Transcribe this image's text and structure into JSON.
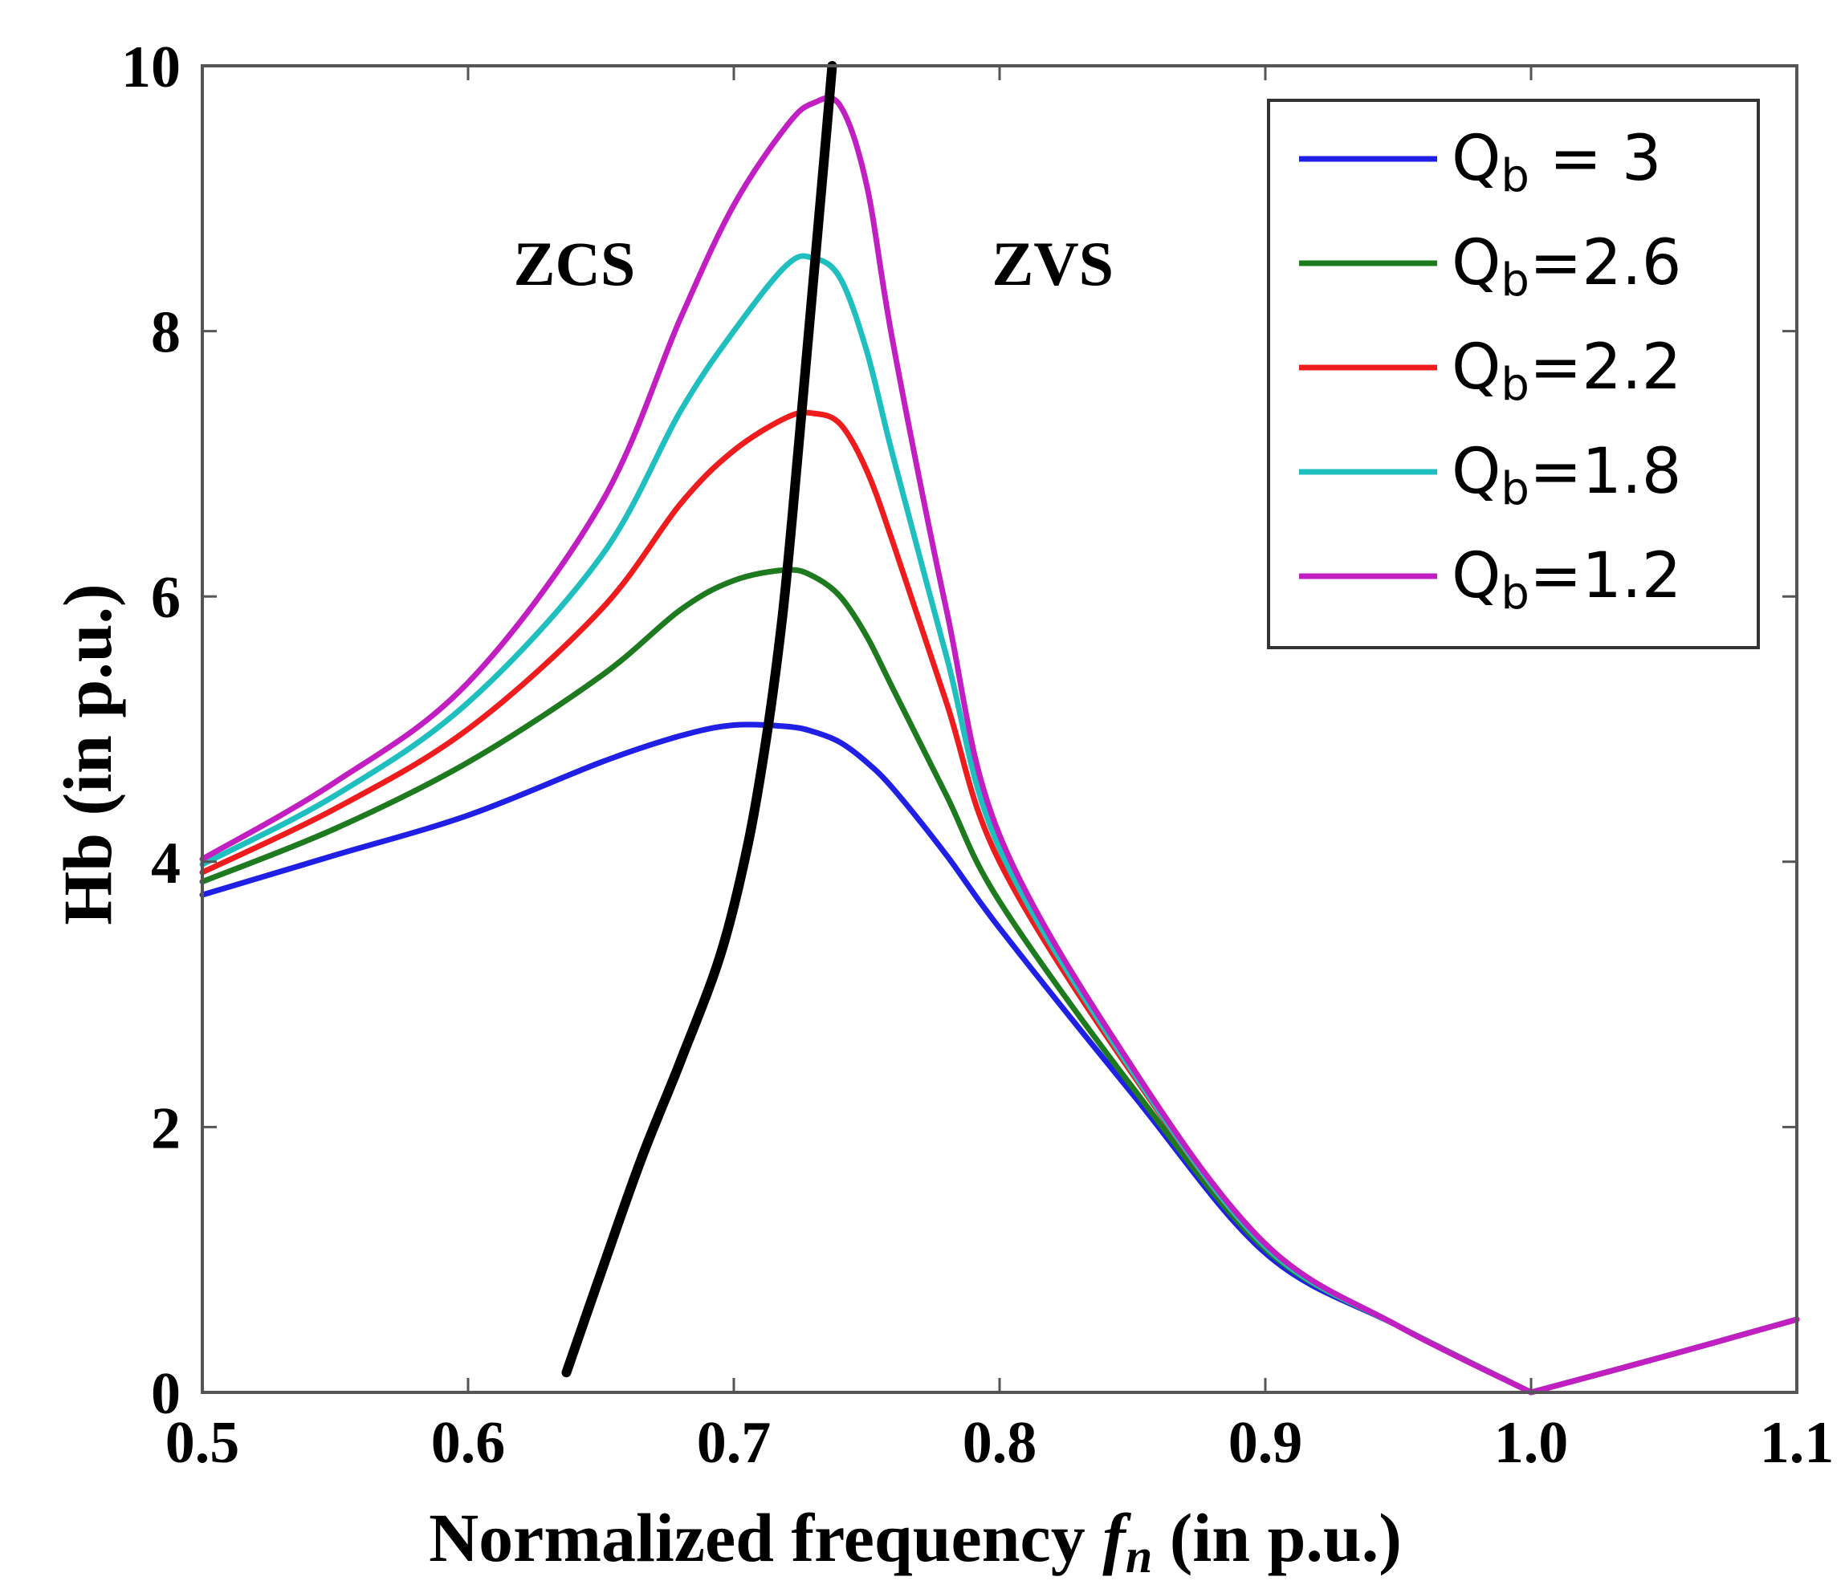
{
  "chart_data": {
    "type": "line",
    "xlabel": "Normalized frequency",
    "xlabel_symbol": "f",
    "xlabel_symbol_sub": "n",
    "xlabel_suffix": "(in p.u.)",
    "ylabel": "Hb (in p.u.)",
    "xlim": [
      0.5,
      1.1
    ],
    "ylim": [
      0,
      10
    ],
    "xticks": [
      0.5,
      0.6,
      0.7,
      0.8,
      0.9,
      1.0,
      1.1
    ],
    "xtick_labels": [
      "0.5",
      "0.6",
      "0.7",
      "0.8",
      "0.9",
      "1.0",
      "1.1"
    ],
    "yticks": [
      0,
      2,
      4,
      6,
      8,
      10
    ],
    "ytick_labels": [
      "0",
      "2",
      "4",
      "6",
      "8",
      "10"
    ],
    "grid": false,
    "legend_position": "top-right",
    "annotations": [
      {
        "text": "ZCS",
        "x": 0.64,
        "y": 8.5
      },
      {
        "text": "ZVS",
        "x": 0.82,
        "y": 8.5
      }
    ],
    "x": [
      0.5,
      0.55,
      0.6,
      0.65,
      0.68,
      0.7,
      0.72,
      0.73,
      0.74,
      0.75,
      0.76,
      0.78,
      0.8,
      0.85,
      0.9,
      0.95,
      1.0,
      1.05,
      1.1
    ],
    "series": [
      {
        "name_prefix": "Q",
        "name_sub": "b",
        "name_suffix": " = 3",
        "color": "#1f1fe6",
        "values": [
          3.75,
          4.05,
          4.35,
          4.75,
          4.95,
          5.03,
          5.02,
          4.98,
          4.9,
          4.75,
          4.55,
          4.05,
          3.5,
          2.25,
          1.05,
          0.5,
          0.0,
          0.27,
          0.55
        ]
      },
      {
        "name_prefix": "Q",
        "name_sub": "b",
        "name_suffix": "=2.6",
        "color": "#1e7a1e",
        "values": [
          3.85,
          4.25,
          4.75,
          5.4,
          5.9,
          6.12,
          6.2,
          6.15,
          6.0,
          5.7,
          5.3,
          4.5,
          3.7,
          2.3,
          1.08,
          0.5,
          0.0,
          0.27,
          0.55
        ]
      },
      {
        "name_prefix": "Q",
        "name_sub": "b",
        "name_suffix": "=2.2",
        "color": "#ee1c1c",
        "values": [
          3.92,
          4.4,
          5.0,
          5.9,
          6.7,
          7.1,
          7.35,
          7.38,
          7.3,
          6.95,
          6.4,
          5.2,
          4.0,
          2.4,
          1.1,
          0.5,
          0.0,
          0.27,
          0.55
        ]
      },
      {
        "name_prefix": "Q",
        "name_sub": "b",
        "name_suffix": "=1.8",
        "color": "#1fbfbf",
        "values": [
          3.98,
          4.5,
          5.2,
          6.3,
          7.4,
          8.0,
          8.5,
          8.55,
          8.4,
          7.85,
          7.05,
          5.55,
          4.1,
          2.42,
          1.1,
          0.5,
          0.0,
          0.27,
          0.55
        ]
      },
      {
        "name_prefix": "Q",
        "name_sub": "b",
        "name_suffix": "=1.2",
        "color": "#c21fc2",
        "values": [
          4.02,
          4.6,
          5.35,
          6.7,
          8.1,
          8.95,
          9.55,
          9.72,
          9.7,
          9.1,
          7.9,
          5.9,
          4.2,
          2.45,
          1.12,
          0.5,
          0.0,
          0.27,
          0.55
        ]
      },
      {
        "name": "ZCS/ZVS boundary",
        "color": "#000000",
        "in_legend": false,
        "x": [
          0.637,
          0.65,
          0.665,
          0.68,
          0.695,
          0.705,
          0.712,
          0.718,
          0.722,
          0.726,
          0.73,
          0.734,
          0.737
        ],
        "values": [
          0.15,
          0.9,
          1.75,
          2.5,
          3.3,
          4.1,
          4.9,
          5.8,
          6.6,
          7.5,
          8.4,
          9.3,
          10.0
        ]
      }
    ]
  }
}
